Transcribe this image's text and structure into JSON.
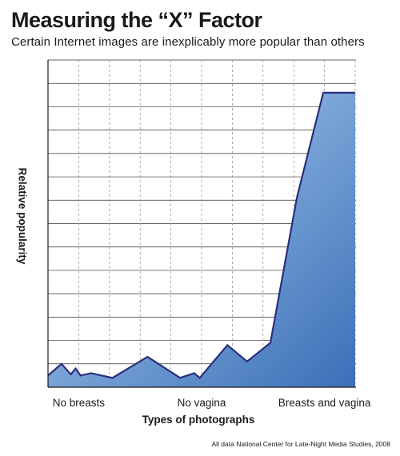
{
  "title": "Measuring the “X” Factor",
  "subtitle": "Certain Internet images are inexplicably more popular than others",
  "source": "All data National Center for Late-Night Media Studies, 2008",
  "chart_data": {
    "type": "area",
    "title": "Measuring the “X” Factor",
    "subtitle": "Certain Internet images are inexplicably more popular than others",
    "xlabel": "Types of photographs",
    "ylabel": "Relative popularity",
    "x_tick_labels": [
      "No breasts",
      "No vagina",
      "Breasts and vagina"
    ],
    "x_tick_positions": [
      1,
      3,
      5
    ],
    "x_range": [
      0.5,
      5.5
    ],
    "y_range": [
      0,
      14
    ],
    "grid": true,
    "legend": "none",
    "series": [
      {
        "x": [
          0.5,
          0.72,
          0.87,
          0.95,
          1.03,
          1.2,
          1.55,
          2.12,
          2.65,
          2.88,
          2.97,
          3.42,
          3.74,
          4.12,
          4.55,
          4.98,
          5.1,
          5.5
        ],
        "values": [
          0.5,
          1.0,
          0.55,
          0.8,
          0.5,
          0.6,
          0.4,
          1.3,
          0.4,
          0.6,
          0.4,
          1.8,
          1.1,
          1.9,
          8.1,
          12.6,
          12.6,
          12.6
        ]
      }
    ],
    "colors": {
      "line": "#2b2f7a",
      "fill_top": "#b3d6f2",
      "fill_bottom": "#3b6fb8"
    }
  }
}
